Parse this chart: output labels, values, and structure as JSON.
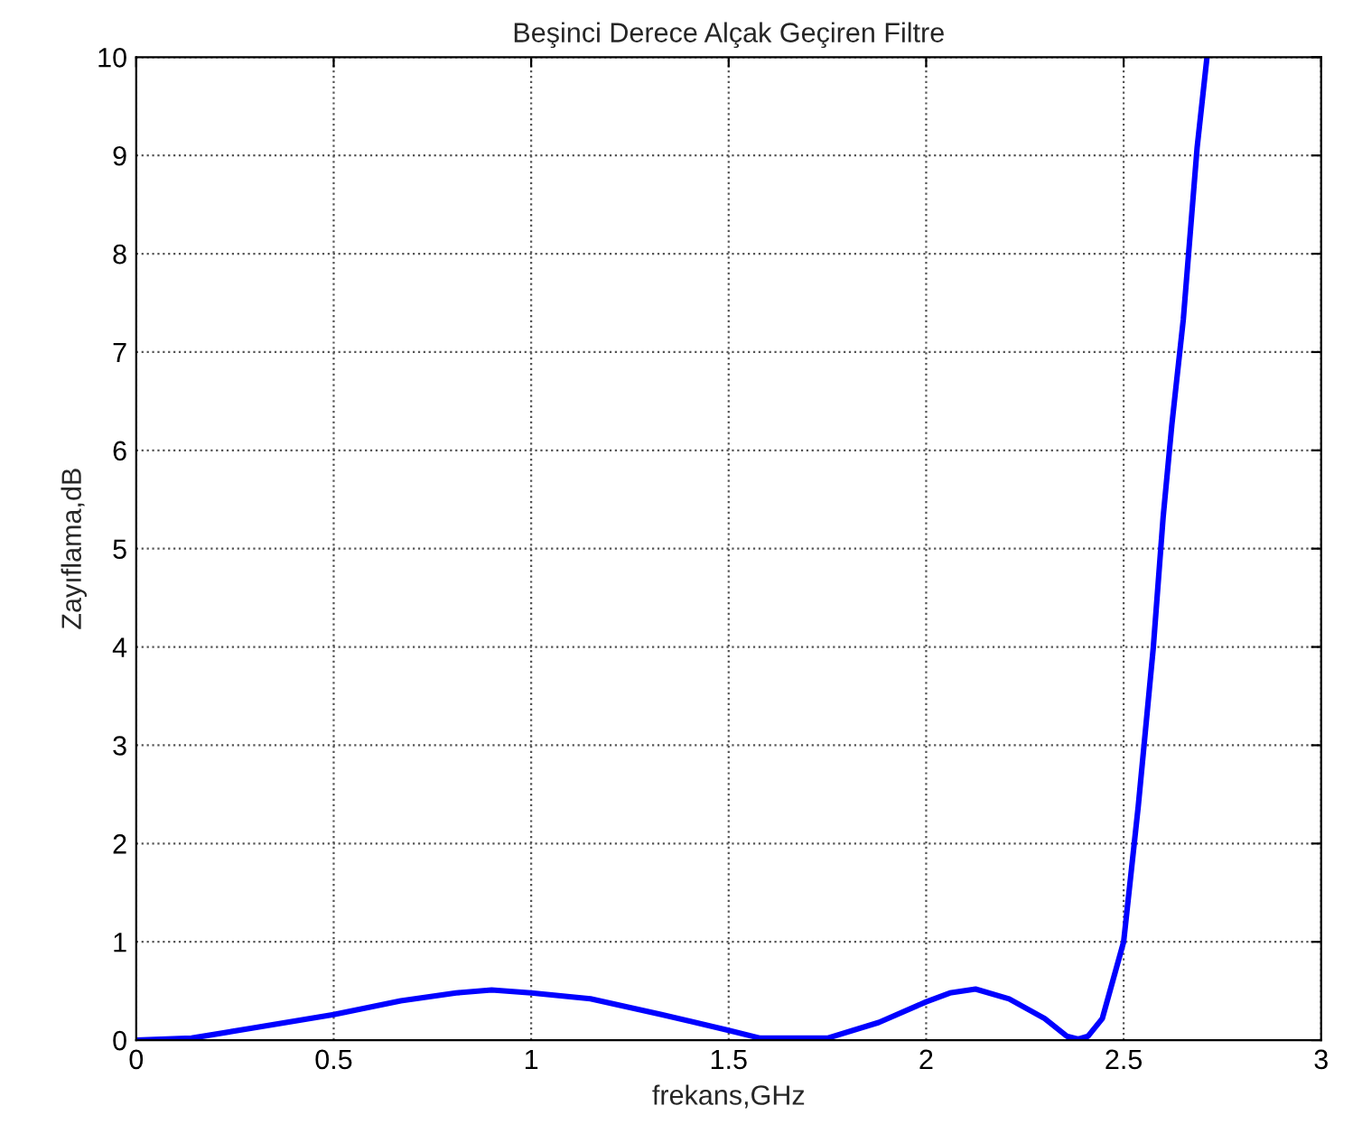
{
  "chart_data": {
    "type": "line",
    "title": "Beşinci Derece Alçak Geçiren Filtre",
    "xlabel": "frekans,GHz",
    "ylabel": "Zayıflama,dB",
    "xlim": [
      0,
      3
    ],
    "ylim": [
      0,
      10
    ],
    "xticks": [
      0,
      0.5,
      1,
      1.5,
      2,
      2.5,
      3
    ],
    "yticks": [
      0,
      1,
      2,
      3,
      4,
      5,
      6,
      7,
      8,
      9,
      10
    ],
    "grid": true,
    "line_style": "solid",
    "marker": "none",
    "series": [
      {
        "color": "#0000ff",
        "x": [
          0,
          0.14,
          0.29,
          0.5,
          0.67,
          0.81,
          0.9,
          1.0,
          1.15,
          1.33,
          1.5,
          1.58,
          1.75,
          1.88,
          2.0,
          2.06,
          2.125,
          2.21,
          2.3,
          2.356,
          2.385,
          2.41,
          2.446,
          2.5,
          2.537,
          2.575,
          2.6,
          2.622,
          2.651,
          2.686,
          2.711
        ],
        "values": [
          0,
          0.02,
          0.12,
          0.26,
          0.4,
          0.48,
          0.51,
          0.48,
          0.42,
          0.26,
          0.1,
          0.02,
          0.02,
          0.18,
          0.39,
          0.48,
          0.52,
          0.42,
          0.22,
          0.04,
          0.01,
          0.04,
          0.22,
          1.0,
          2.38,
          3.99,
          5.32,
          6.26,
          7.33,
          9.08,
          10.0
        ]
      }
    ]
  }
}
